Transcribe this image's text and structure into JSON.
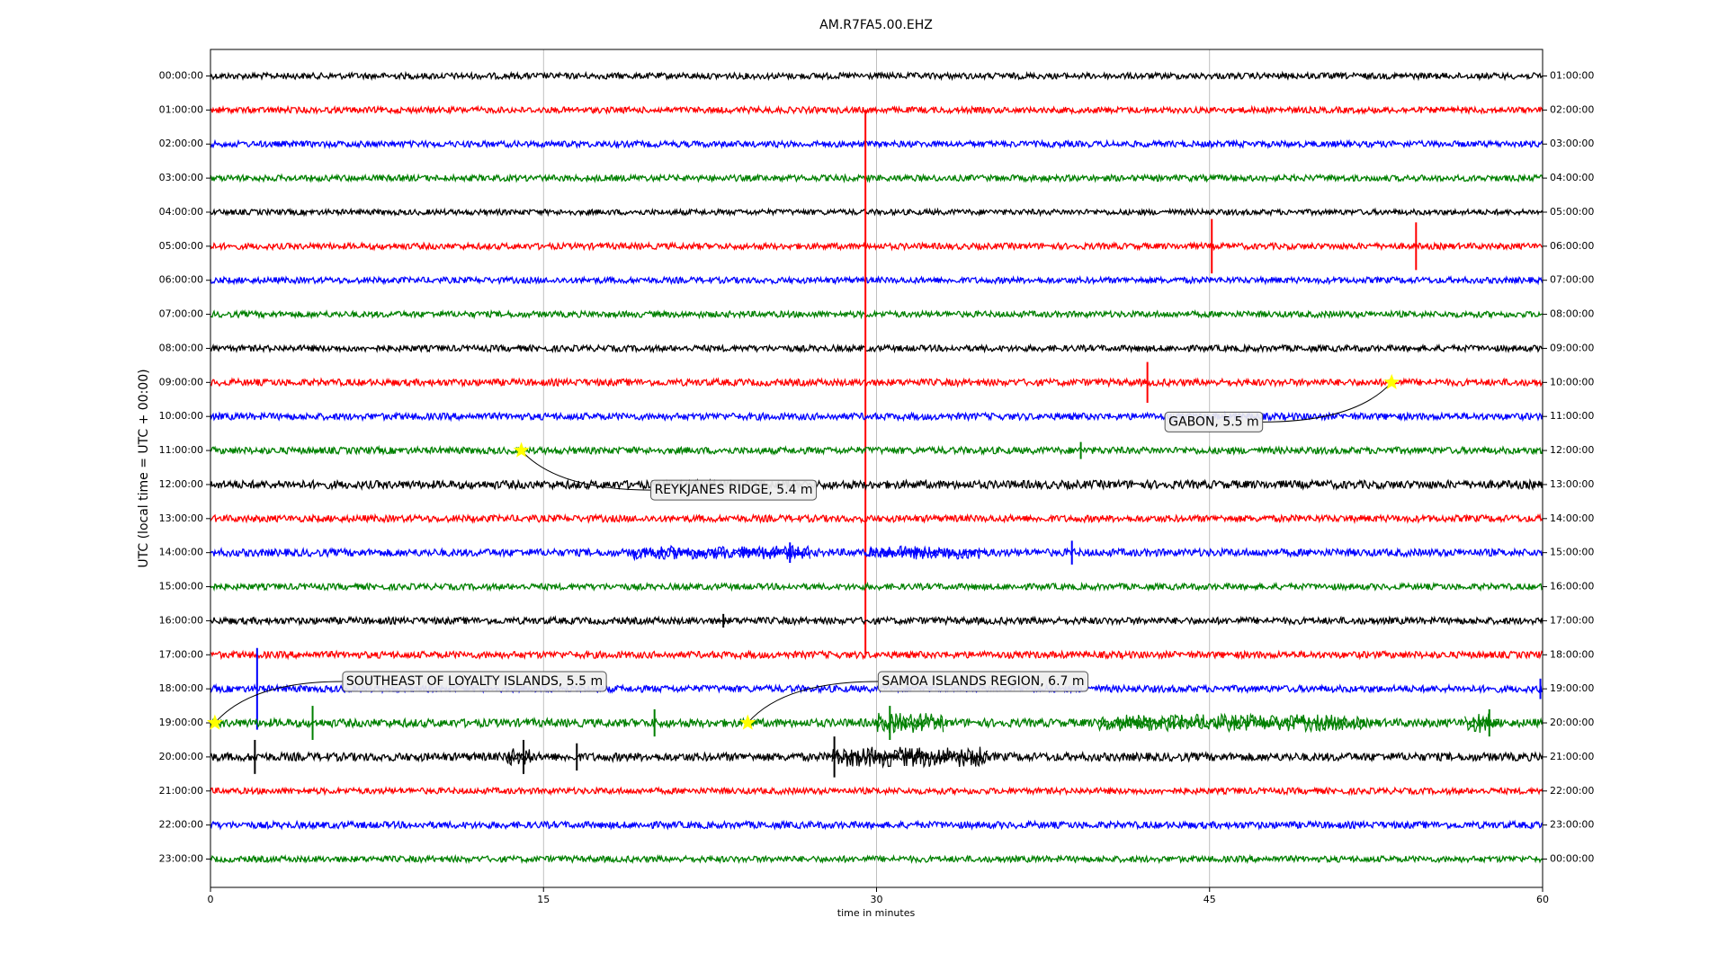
{
  "chart_data": {
    "type": "dayplot",
    "title": "AM.R7FA5.00.EHZ",
    "xlabel": "time in minutes",
    "ylabel": "UTC (local time = UTC + 00:00)",
    "xlim": [
      0,
      60
    ],
    "xticks": [
      0,
      15,
      30,
      45,
      60
    ],
    "grid": true,
    "colors": [
      "#000000",
      "#ff0000",
      "#0000ff",
      "#008000"
    ],
    "left_labels": [
      "00:00:00",
      "01:00:00",
      "02:00:00",
      "03:00:00",
      "04:00:00",
      "05:00:00",
      "06:00:00",
      "07:00:00",
      "08:00:00",
      "09:00:00",
      "10:00:00",
      "11:00:00",
      "12:00:00",
      "13:00:00",
      "14:00:00",
      "15:00:00",
      "16:00:00",
      "17:00:00",
      "18:00:00",
      "19:00:00",
      "20:00:00",
      "21:00:00",
      "22:00:00",
      "23:00:00"
    ],
    "right_labels": [
      "01:00:00",
      "02:00:00",
      "03:00:00",
      "04:00:00",
      "05:00:00",
      "06:00:00",
      "07:00:00",
      "08:00:00",
      "09:00:00",
      "10:00:00",
      "11:00:00",
      "12:00:00",
      "13:00:00",
      "14:00:00",
      "15:00:00",
      "16:00:00",
      "17:00:00",
      "18:00:00",
      "19:00:00",
      "20:00:00",
      "21:00:00",
      "22:00:00",
      "23:00:00",
      "00:00:00"
    ],
    "rows": [
      {
        "noise": 0.09,
        "spikes": [],
        "bursts": []
      },
      {
        "noise": 0.09,
        "spikes": [],
        "bursts": []
      },
      {
        "noise": 0.09,
        "spikes": [],
        "bursts": []
      },
      {
        "noise": 0.09,
        "spikes": [],
        "bursts": []
      },
      {
        "noise": 0.08,
        "spikes": [],
        "bursts": []
      },
      {
        "noise": 0.09,
        "spikes": [
          [
            45.1,
            0.8
          ],
          [
            54.3,
            0.7
          ]
        ],
        "bursts": []
      },
      {
        "noise": 0.09,
        "spikes": [],
        "bursts": []
      },
      {
        "noise": 0.09,
        "spikes": [],
        "bursts": []
      },
      {
        "noise": 0.09,
        "spikes": [],
        "bursts": []
      },
      {
        "noise": 0.1,
        "spikes": [
          [
            29.5,
            8
          ],
          [
            42.2,
            0.6
          ]
        ],
        "bursts": []
      },
      {
        "noise": 0.1,
        "spikes": [],
        "bursts": []
      },
      {
        "noise": 0.1,
        "spikes": [
          [
            39.2,
            0.25
          ]
        ],
        "bursts": []
      },
      {
        "noise": 0.12,
        "spikes": [],
        "bursts": []
      },
      {
        "noise": 0.1,
        "spikes": [],
        "bursts": []
      },
      {
        "noise": 0.11,
        "spikes": [
          [
            26.1,
            0.3
          ],
          [
            38.8,
            0.35
          ]
        ],
        "bursts": [
          [
            19,
            27,
            0.2
          ],
          [
            29.5,
            35,
            0.2
          ]
        ]
      },
      {
        "noise": 0.09,
        "spikes": [],
        "bursts": []
      },
      {
        "noise": 0.1,
        "spikes": [
          [
            23.1,
            0.2
          ]
        ],
        "bursts": []
      },
      {
        "noise": 0.1,
        "spikes": [],
        "bursts": []
      },
      {
        "noise": 0.1,
        "spikes": [
          [
            2.1,
            1.2
          ],
          [
            59.9,
            0.3
          ]
        ],
        "bursts": []
      },
      {
        "noise": 0.12,
        "spikes": [
          [
            4.6,
            0.5
          ],
          [
            20.0,
            0.4
          ],
          [
            30.6,
            0.5
          ],
          [
            57.6,
            0.4
          ]
        ],
        "bursts": [
          [
            30,
            33,
            0.3
          ],
          [
            40,
            52,
            0.25
          ],
          [
            56.5,
            58,
            0.3
          ]
        ]
      },
      {
        "noise": 0.12,
        "spikes": [
          [
            2.0,
            0.5
          ],
          [
            14.1,
            0.5
          ],
          [
            16.5,
            0.4
          ],
          [
            28.1,
            0.6
          ]
        ],
        "bursts": [
          [
            28,
            35,
            0.3
          ],
          [
            13.3,
            14.5,
            0.25
          ]
        ]
      },
      {
        "noise": 0.09,
        "spikes": [],
        "bursts": []
      },
      {
        "noise": 0.1,
        "spikes": [],
        "bursts": []
      },
      {
        "noise": 0.09,
        "spikes": [],
        "bursts": []
      }
    ],
    "events": [
      {
        "label": "GABON, 5.5 m",
        "minute": 53.2,
        "row": 9
      },
      {
        "label": "REYKJANES RIDGE, 5.4 m",
        "minute": 14.0,
        "row": 11
      },
      {
        "label": "SOUTHEAST OF LOYALTY ISLANDS, 5.5 m",
        "minute": 0.2,
        "row": 19
      },
      {
        "label": "SAMOA ISLANDS REGION, 6.7 m",
        "minute": 24.2,
        "row": 19
      }
    ]
  }
}
